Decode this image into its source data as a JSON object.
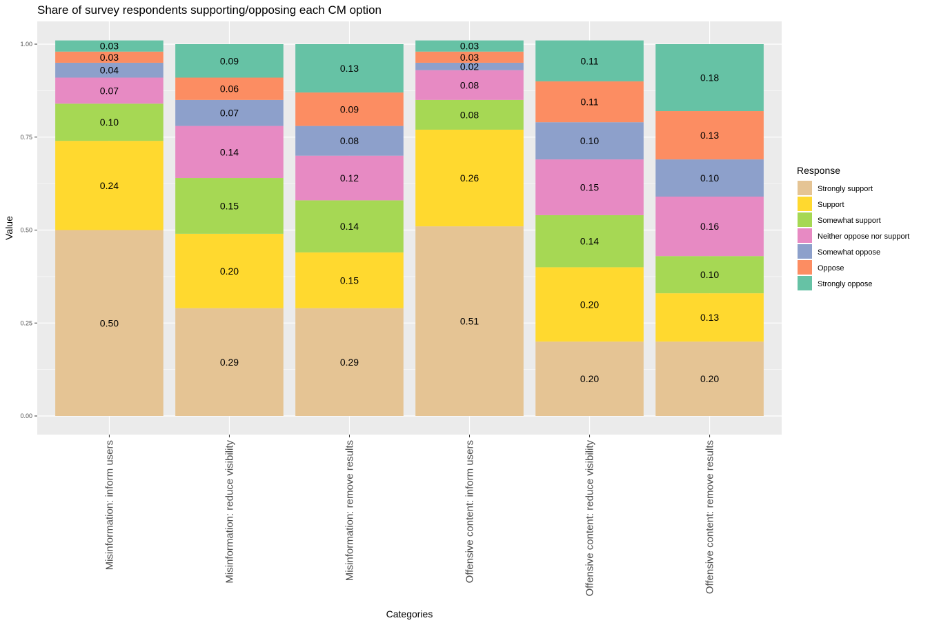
{
  "chart_data": {
    "type": "bar",
    "stacked": true,
    "title": "Share of survey respondents supporting/opposing each CM option",
    "xlabel": "Categories",
    "ylabel": "Value",
    "ylim": [
      0,
      1
    ],
    "yticks": [
      "0.00",
      "0.25",
      "0.50",
      "0.75",
      "1.00"
    ],
    "categories": [
      "Misinformation: inform users",
      "Misinformation: reduce visibility",
      "Misinformation: remove results",
      "Offensive content: inform users",
      "Offensive content: reduce visibility",
      "Offensive content: remove results"
    ],
    "legend_title": "Response",
    "legend_position": "right",
    "series": [
      {
        "name": "Strongly support",
        "color": "#E5C494",
        "values": [
          0.5,
          0.29,
          0.29,
          0.51,
          0.2,
          0.2
        ],
        "labels": [
          "0.50",
          "0.29",
          "0.29",
          "0.51",
          "0.20",
          "0.20"
        ]
      },
      {
        "name": "Support",
        "color": "#FFD92F",
        "values": [
          0.24,
          0.2,
          0.15,
          0.26,
          0.2,
          0.13
        ],
        "labels": [
          "0.24",
          "0.20",
          "0.15",
          "0.26",
          "0.20",
          "0.13"
        ]
      },
      {
        "name": "Somewhat support",
        "color": "#A6D854",
        "values": [
          0.1,
          0.15,
          0.14,
          0.08,
          0.14,
          0.1
        ],
        "labels": [
          "0.10",
          "0.15",
          "0.14",
          "0.08",
          "0.14",
          "0.10"
        ]
      },
      {
        "name": "Neither oppose nor support",
        "color": "#E78AC3",
        "values": [
          0.07,
          0.14,
          0.12,
          0.08,
          0.15,
          0.16
        ],
        "labels": [
          "0.07",
          "0.14",
          "0.12",
          "0.08",
          "0.15",
          "0.16"
        ]
      },
      {
        "name": "Somewhat oppose",
        "color": "#8DA0CB",
        "values": [
          0.04,
          0.07,
          0.08,
          0.02,
          0.1,
          0.1
        ],
        "labels": [
          "0.04",
          "0.07",
          "0.08",
          "0.02",
          "0.10",
          "0.10"
        ]
      },
      {
        "name": "Oppose",
        "color": "#FC8D62",
        "values": [
          0.03,
          0.06,
          0.09,
          0.03,
          0.11,
          0.13
        ],
        "labels": [
          "0.03",
          "0.06",
          "0.09",
          "0.03",
          "0.11",
          "0.13"
        ]
      },
      {
        "name": "Strongly oppose",
        "color": "#66C2A5",
        "values": [
          0.03,
          0.09,
          0.13,
          0.03,
          0.11,
          0.18
        ],
        "labels": [
          "0.03",
          "0.09",
          "0.13",
          "0.03",
          "0.11",
          "0.18"
        ]
      }
    ]
  }
}
